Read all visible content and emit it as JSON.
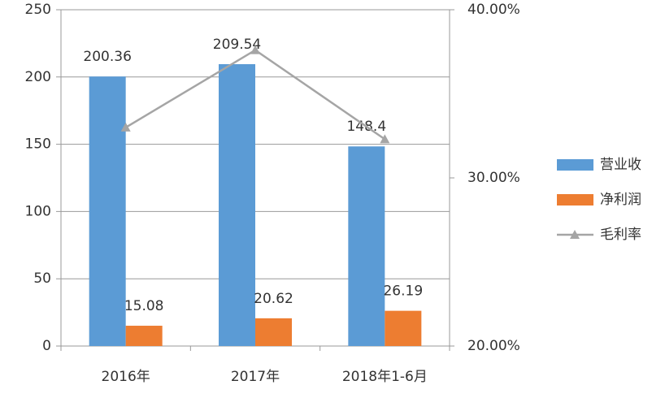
{
  "chart_data": {
    "type": "bar",
    "categories": [
      "2016年",
      "2017年",
      "2018年1-6月"
    ],
    "series": [
      {
        "name": "营业收",
        "color": "#5b9bd5",
        "values": [
          200.36,
          209.54,
          148.4
        ]
      },
      {
        "name": "净利润",
        "color": "#ed7d31",
        "values": [
          15.08,
          20.62,
          26.19
        ]
      },
      {
        "name": "毛利率",
        "color": "#a5a5a5",
        "type": "line",
        "axis": "y2",
        "values": [
          33.0,
          37.6,
          32.3
        ]
      }
    ],
    "ylim": [
      0,
      250
    ],
    "yticks": [
      0,
      50,
      100,
      150,
      200,
      250
    ],
    "y2lim": [
      20,
      40
    ],
    "y2ticks": [
      {
        "value": 20,
        "label": "20.00%"
      },
      {
        "value": 30,
        "label": "30.00%"
      },
      {
        "value": 40,
        "label": "40.00%"
      }
    ],
    "grid": true,
    "legend": "right"
  }
}
